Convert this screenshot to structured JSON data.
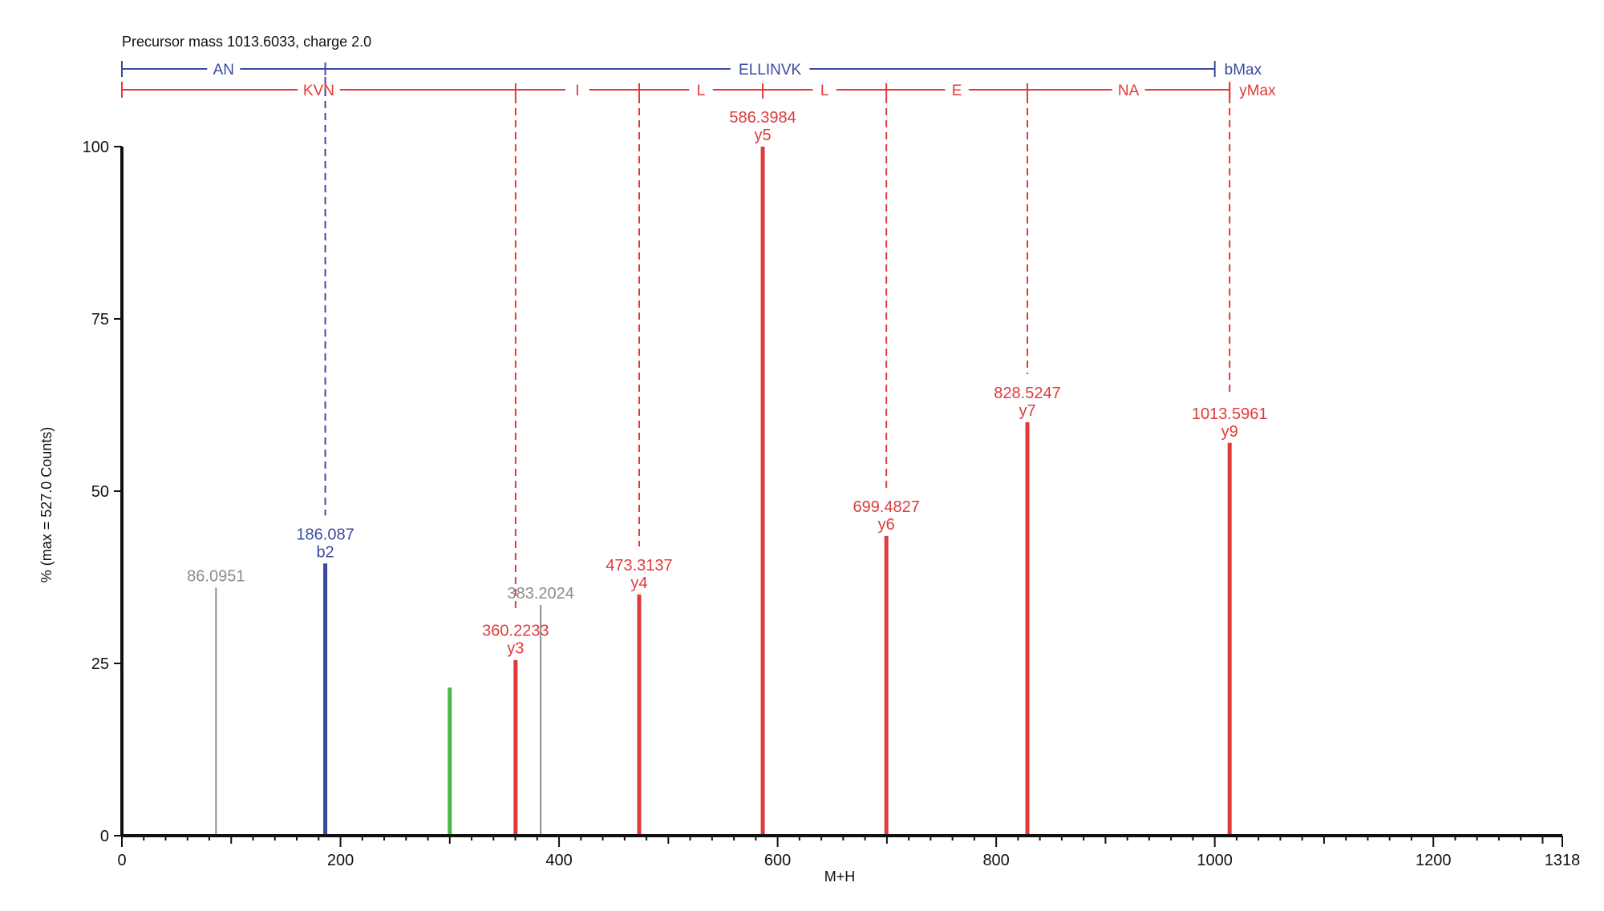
{
  "chart_data": {
    "type": "bar",
    "title": "Precursor mass 1013.6033, charge 2.0",
    "xlabel": "M+H",
    "ylabel": "% (max = 527.0 Counts)",
    "xlim": [
      0,
      1318
    ],
    "ylim": [
      0,
      100
    ],
    "x_ticks": [
      0,
      200,
      400,
      600,
      800,
      1000,
      1200,
      1318
    ],
    "x_tick_labels": [
      "0",
      "200",
      "400",
      "600",
      "800",
      "1000",
      "1200",
      "1318"
    ],
    "y_ticks": [
      0,
      25,
      50,
      75,
      100
    ],
    "y_tick_labels": [
      "0",
      "25",
      "50",
      "75",
      "100"
    ],
    "grid": false,
    "colors": {
      "b": "#3b4aa0",
      "y": "#e03a3a",
      "other": "#8c8c8c",
      "green": "#49b84a",
      "axis": "#111111"
    },
    "peaks": [
      {
        "mz": 86.0951,
        "intensity": 36,
        "label": "86.0951",
        "ion": "",
        "type": "other"
      },
      {
        "mz": 186.087,
        "intensity": 39.5,
        "label": "186.087",
        "ion": "b2",
        "type": "b"
      },
      {
        "mz": 300,
        "intensity": 21.5,
        "label": "",
        "ion": "",
        "type": "green"
      },
      {
        "mz": 360.2233,
        "intensity": 25.5,
        "label": "360.2233",
        "ion": "y3",
        "type": "y"
      },
      {
        "mz": 383.2024,
        "intensity": 33.5,
        "label": "383.2024",
        "ion": "",
        "type": "other"
      },
      {
        "mz": 473.3137,
        "intensity": 35,
        "label": "473.3137",
        "ion": "y4",
        "type": "y"
      },
      {
        "mz": 586.3984,
        "intensity": 100,
        "label": "586.3984",
        "ion": "y5",
        "type": "y"
      },
      {
        "mz": 699.4827,
        "intensity": 43.5,
        "label": "699.4827",
        "ion": "y6",
        "type": "y"
      },
      {
        "mz": 828.5247,
        "intensity": 60,
        "label": "828.5247",
        "ion": "y7",
        "type": "y"
      },
      {
        "mz": 1013.5961,
        "intensity": 57,
        "label": "1013.5961",
        "ion": "y9",
        "type": "y"
      }
    ],
    "sequence_ladders": [
      {
        "name": "b",
        "end_label": "bMax",
        "start_mz": 0,
        "end_mz": 1000,
        "tick_mz": [
          186.087
        ],
        "segments": [
          {
            "from": 0,
            "to": 186.087,
            "label": "AN"
          },
          {
            "from": 186.087,
            "to": 1000,
            "label": "ELLINVK"
          }
        ]
      },
      {
        "name": "y",
        "end_label": "yMax",
        "start_mz": 0,
        "end_mz": 1013.5961,
        "tick_mz": [
          186.087,
          360.2233,
          473.3137,
          586.3984,
          699.4827,
          828.5247,
          1013.5961
        ],
        "segments": [
          {
            "from": 0,
            "to": 360.2233,
            "label": "KVN"
          },
          {
            "from": 360.2233,
            "to": 473.3137,
            "label": "I"
          },
          {
            "from": 473.3137,
            "to": 586.3984,
            "label": "L"
          },
          {
            "from": 586.3984,
            "to": 699.4827,
            "label": "L"
          },
          {
            "from": 699.4827,
            "to": 828.5247,
            "label": "E"
          },
          {
            "from": 828.5247,
            "to": 1013.5961,
            "label": "NA"
          }
        ]
      }
    ]
  }
}
